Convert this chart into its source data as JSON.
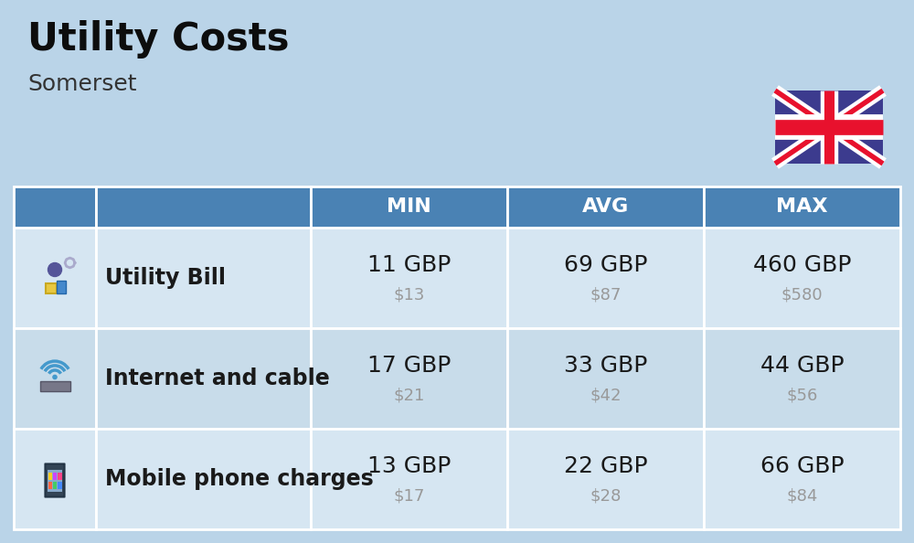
{
  "title": "Utility Costs",
  "subtitle": "Somerset",
  "background_color": "#bad4e8",
  "header_bg_color": "#4a82b4",
  "header_text_color": "#ffffff",
  "row_bg_color_1": "#d6e6f2",
  "row_bg_color_2": "#c8dcea",
  "header_labels": [
    "MIN",
    "AVG",
    "MAX"
  ],
  "rows": [
    {
      "label": "Utility Bill",
      "min_gbp": "11 GBP",
      "min_usd": "$13",
      "avg_gbp": "69 GBP",
      "avg_usd": "$87",
      "max_gbp": "460 GBP",
      "max_usd": "$580"
    },
    {
      "label": "Internet and cable",
      "min_gbp": "17 GBP",
      "min_usd": "$21",
      "avg_gbp": "33 GBP",
      "avg_usd": "$42",
      "max_gbp": "44 GBP",
      "max_usd": "$56"
    },
    {
      "label": "Mobile phone charges",
      "min_gbp": "13 GBP",
      "min_usd": "$17",
      "avg_gbp": "22 GBP",
      "avg_usd": "$28",
      "max_gbp": "66 GBP",
      "max_usd": "$84"
    }
  ],
  "gbp_fontsize": 18,
  "usd_fontsize": 13,
  "usd_color": "#999999",
  "label_fontsize": 17,
  "header_fontsize": 16,
  "title_fontsize": 30,
  "subtitle_fontsize": 18
}
